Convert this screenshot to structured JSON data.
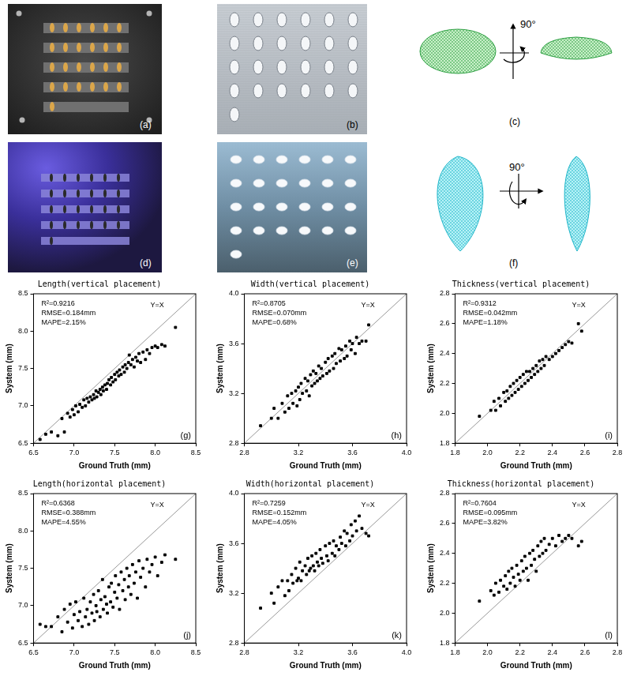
{
  "panels": [
    {
      "label": "(a)"
    },
    {
      "label": "(b)"
    },
    {
      "label": "(c)",
      "rotation": "90°"
    },
    {
      "label": "(d)"
    },
    {
      "label": "(e)"
    },
    {
      "label": "(f)",
      "rotation": "90°"
    }
  ],
  "chart_data": [
    {
      "type": "scatter",
      "title": "Length(vertical placement)",
      "x_label": "Ground Truth (mm)",
      "y_label": "System (mm)",
      "annotations": [
        "R²=0.9216",
        "RMSE=0.184mm",
        "MAPE=2.15%"
      ],
      "panel_label": "(g)",
      "reference_line": {
        "label": "Y=X",
        "color": "#999999",
        "x": [
          6.5,
          8.5
        ],
        "values": [
          6.5,
          8.5
        ]
      },
      "color": "#000000",
      "marker": "square",
      "grid": false,
      "xlim": [
        6.5,
        8.5
      ],
      "ylim": [
        6.5,
        8.5
      ],
      "xticks": [
        6.5,
        {
          "value": 7,
          "label": "7.0"
        },
        7.5,
        {
          "value": 8,
          "label": "8.0"
        },
        8.5
      ],
      "yticks": [
        6.5,
        {
          "value": 7,
          "label": "7.0"
        },
        7.5,
        {
          "value": 8,
          "label": "8.0"
        },
        8.5
      ],
      "x": [
        6.58,
        6.65,
        6.72,
        6.8,
        6.85,
        6.88,
        6.92,
        6.95,
        6.98,
        7.0,
        7.02,
        7.05,
        7.07,
        7.1,
        7.12,
        7.14,
        7.16,
        7.18,
        7.2,
        7.22,
        7.24,
        7.25,
        7.27,
        7.28,
        7.3,
        7.32,
        7.33,
        7.35,
        7.36,
        7.38,
        7.4,
        7.41,
        7.43,
        7.45,
        7.46,
        7.48,
        7.5,
        7.51,
        7.53,
        7.55,
        7.56,
        7.58,
        7.6,
        7.62,
        7.63,
        7.65,
        7.67,
        7.68,
        7.7,
        7.72,
        7.74,
        7.76,
        7.78,
        7.8,
        7.82,
        7.85,
        7.88,
        7.9,
        7.93,
        7.96,
        8.0,
        8.03,
        8.08,
        8.12,
        8.25
      ],
      "values": [
        6.55,
        6.62,
        6.65,
        6.6,
        6.83,
        6.65,
        6.9,
        6.85,
        6.95,
        6.88,
        7.0,
        6.92,
        7.02,
        6.98,
        7.08,
        7.0,
        7.1,
        7.05,
        7.12,
        7.08,
        7.15,
        7.1,
        7.2,
        7.12,
        7.18,
        7.22,
        7.15,
        7.25,
        7.2,
        7.28,
        7.22,
        7.3,
        7.35,
        7.28,
        7.38,
        7.32,
        7.42,
        7.35,
        7.45,
        7.4,
        7.48,
        7.42,
        7.52,
        7.45,
        7.55,
        7.5,
        7.58,
        7.68,
        7.55,
        7.62,
        7.52,
        7.65,
        7.6,
        7.7,
        7.58,
        7.72,
        7.62,
        7.75,
        7.7,
        7.78,
        7.8,
        7.78,
        7.82,
        7.8,
        8.05
      ]
    },
    {
      "type": "scatter",
      "title": "Width(vertical placement)",
      "x_label": "Ground Truth (mm)",
      "y_label": "System (mm)",
      "annotations": [
        "R²=0.8705",
        "RMSE=0.070mm",
        "MAPE=0.68%"
      ],
      "panel_label": "(h)",
      "reference_line": {
        "label": "Y=X",
        "color": "#999999",
        "x": [
          2.8,
          4.0
        ],
        "values": [
          2.8,
          4.0
        ]
      },
      "color": "#000000",
      "marker": "square",
      "grid": false,
      "xlim": [
        2.8,
        4.0
      ],
      "ylim": [
        2.8,
        4.0
      ],
      "xticks": [
        2.8,
        3.2,
        3.6,
        {
          "value": 4,
          "label": "4.0"
        }
      ],
      "yticks": [
        2.8,
        3.2,
        3.6,
        {
          "value": 4,
          "label": "4.0"
        }
      ],
      "x": [
        2.92,
        3.0,
        3.02,
        3.05,
        3.08,
        3.1,
        3.12,
        3.13,
        3.15,
        3.16,
        3.18,
        3.19,
        3.2,
        3.21,
        3.22,
        3.23,
        3.25,
        3.26,
        3.27,
        3.28,
        3.29,
        3.3,
        3.31,
        3.32,
        3.33,
        3.34,
        3.35,
        3.36,
        3.37,
        3.38,
        3.4,
        3.41,
        3.42,
        3.43,
        3.45,
        3.46,
        3.47,
        3.48,
        3.5,
        3.51,
        3.52,
        3.54,
        3.55,
        3.56,
        3.58,
        3.59,
        3.6,
        3.62,
        3.63,
        3.65,
        3.67,
        3.7,
        3.72
      ],
      "values": [
        2.94,
        3.0,
        3.08,
        3.0,
        3.12,
        3.05,
        3.18,
        3.08,
        3.2,
        3.12,
        3.22,
        3.1,
        3.25,
        3.15,
        3.28,
        3.2,
        3.32,
        3.22,
        3.3,
        3.18,
        3.35,
        3.26,
        3.38,
        3.28,
        3.36,
        3.3,
        3.42,
        3.32,
        3.4,
        3.34,
        3.45,
        3.36,
        3.48,
        3.38,
        3.5,
        3.4,
        3.52,
        3.44,
        3.56,
        3.46,
        3.55,
        3.48,
        3.58,
        3.5,
        3.62,
        3.55,
        3.6,
        3.52,
        3.65,
        3.6,
        3.62,
        3.62,
        3.75
      ]
    },
    {
      "type": "scatter",
      "title": "Thickness(vertical placement)",
      "x_label": "Ground Truth (mm)",
      "y_label": "System (mm)",
      "annotations": [
        "R²=0.9312",
        "RMSE=0.042mm",
        "MAPE=1.18%"
      ],
      "panel_label": "(i)",
      "reference_line": {
        "label": "Y=X",
        "color": "#999999",
        "x": [
          1.8,
          2.8
        ],
        "values": [
          1.8,
          2.8
        ]
      },
      "color": "#000000",
      "marker": "square",
      "grid": false,
      "xlim": [
        1.8,
        2.8
      ],
      "ylim": [
        1.8,
        2.8
      ],
      "xticks": [
        1.8,
        {
          "value": 2,
          "label": "2.0"
        },
        2.2,
        2.4,
        2.6,
        2.8
      ],
      "yticks": [
        1.8,
        {
          "value": 2,
          "label": "2.0"
        },
        2.2,
        2.4,
        2.6,
        2.8
      ],
      "x": [
        1.95,
        2.02,
        2.04,
        2.05,
        2.07,
        2.08,
        2.1,
        2.11,
        2.12,
        2.13,
        2.14,
        2.15,
        2.16,
        2.17,
        2.18,
        2.19,
        2.2,
        2.21,
        2.22,
        2.23,
        2.24,
        2.25,
        2.26,
        2.27,
        2.28,
        2.29,
        2.3,
        2.31,
        2.32,
        2.33,
        2.34,
        2.35,
        2.36,
        2.38,
        2.4,
        2.42,
        2.44,
        2.46,
        2.48,
        2.5,
        2.52,
        2.56,
        2.58
      ],
      "values": [
        1.98,
        2.02,
        2.08,
        2.02,
        2.1,
        2.05,
        2.14,
        2.08,
        2.15,
        2.1,
        2.18,
        2.12,
        2.2,
        2.14,
        2.22,
        2.16,
        2.24,
        2.18,
        2.26,
        2.2,
        2.28,
        2.22,
        2.28,
        2.24,
        2.3,
        2.26,
        2.32,
        2.28,
        2.35,
        2.3,
        2.36,
        2.32,
        2.38,
        2.36,
        2.38,
        2.4,
        2.42,
        2.44,
        2.46,
        2.48,
        2.47,
        2.6,
        2.55
      ]
    },
    {
      "type": "scatter",
      "title": "Length(horizontal placement)",
      "x_label": "Ground Truth (mm)",
      "y_label": "System (mm)",
      "annotations": [
        "R²=0.6368",
        "RMSE=0.388mm",
        "MAPE=4.55%"
      ],
      "panel_label": "(j)",
      "reference_line": {
        "label": "Y=X",
        "color": "#999999",
        "x": [
          6.5,
          8.5
        ],
        "values": [
          6.5,
          8.5
        ]
      },
      "color": "#000000",
      "marker": "square",
      "grid": false,
      "xlim": [
        6.5,
        8.5
      ],
      "ylim": [
        6.5,
        8.5
      ],
      "xticks": [
        6.5,
        {
          "value": 7,
          "label": "7.0"
        },
        7.5,
        {
          "value": 8,
          "label": "8.0"
        },
        8.5
      ],
      "yticks": [
        6.5,
        {
          "value": 7,
          "label": "7.0"
        },
        7.5,
        {
          "value": 8,
          "label": "8.0"
        },
        8.5
      ],
      "x": [
        6.58,
        6.65,
        6.72,
        6.8,
        6.85,
        6.88,
        6.92,
        6.95,
        6.98,
        7.0,
        7.02,
        7.05,
        7.07,
        7.1,
        7.12,
        7.14,
        7.16,
        7.18,
        7.2,
        7.22,
        7.24,
        7.25,
        7.27,
        7.28,
        7.3,
        7.32,
        7.33,
        7.35,
        7.36,
        7.38,
        7.4,
        7.41,
        7.43,
        7.45,
        7.46,
        7.48,
        7.5,
        7.51,
        7.53,
        7.55,
        7.56,
        7.58,
        7.6,
        7.62,
        7.63,
        7.65,
        7.67,
        7.68,
        7.7,
        7.72,
        7.74,
        7.76,
        7.78,
        7.8,
        7.82,
        7.85,
        7.88,
        7.9,
        7.93,
        7.96,
        8.0,
        8.03,
        8.08,
        8.12,
        8.25
      ],
      "values": [
        6.75,
        6.72,
        6.72,
        6.85,
        6.65,
        6.95,
        6.78,
        7.02,
        6.7,
        6.88,
        7.05,
        6.8,
        6.92,
        6.72,
        7.1,
        6.85,
        6.95,
        6.75,
        7.05,
        6.9,
        7.15,
        6.8,
        7.0,
        6.92,
        7.2,
        6.85,
        7.08,
        7.35,
        6.95,
        7.12,
        7.02,
        6.9,
        7.25,
        7.05,
        7.3,
        6.98,
        7.18,
        7.4,
        7.1,
        7.28,
        6.95,
        7.45,
        7.2,
        7.35,
        7.08,
        7.5,
        7.25,
        7.4,
        7.15,
        7.55,
        7.3,
        7.45,
        7.1,
        7.6,
        7.38,
        7.5,
        7.25,
        7.62,
        7.45,
        7.55,
        7.65,
        7.4,
        7.58,
        7.68,
        7.62
      ]
    },
    {
      "type": "scatter",
      "title": "Width(horizontal placement)",
      "x_label": "Ground Truth (mm)",
      "y_label": "System (mm)",
      "annotations": [
        "R²=0.7259",
        "RMSE=0.152mm",
        "MAPE=4.05%"
      ],
      "panel_label": "(k)",
      "reference_line": {
        "label": "Y=X",
        "color": "#999999",
        "x": [
          2.8,
          4.0
        ],
        "values": [
          2.8,
          4.0
        ]
      },
      "color": "#000000",
      "marker": "square",
      "grid": false,
      "xlim": [
        2.8,
        4.0
      ],
      "ylim": [
        2.8,
        4.0
      ],
      "xticks": [
        2.8,
        3.2,
        3.6,
        {
          "value": 4,
          "label": "4.0"
        }
      ],
      "yticks": [
        2.8,
        3.2,
        3.6,
        {
          "value": 4,
          "label": "4.0"
        }
      ],
      "x": [
        2.92,
        3.0,
        3.02,
        3.05,
        3.08,
        3.1,
        3.12,
        3.13,
        3.15,
        3.16,
        3.18,
        3.19,
        3.2,
        3.21,
        3.22,
        3.23,
        3.25,
        3.26,
        3.27,
        3.28,
        3.29,
        3.3,
        3.31,
        3.32,
        3.33,
        3.34,
        3.35,
        3.36,
        3.37,
        3.38,
        3.4,
        3.41,
        3.42,
        3.43,
        3.45,
        3.46,
        3.47,
        3.48,
        3.5,
        3.51,
        3.52,
        3.54,
        3.55,
        3.56,
        3.58,
        3.59,
        3.6,
        3.62,
        3.63,
        3.65,
        3.67,
        3.7,
        3.72
      ],
      "values": [
        3.08,
        3.2,
        3.12,
        3.25,
        3.3,
        3.18,
        3.3,
        3.22,
        3.35,
        3.28,
        3.4,
        3.3,
        3.32,
        3.45,
        3.3,
        3.38,
        3.42,
        3.35,
        3.48,
        3.38,
        3.4,
        3.5,
        3.42,
        3.38,
        3.52,
        3.45,
        3.42,
        3.55,
        3.48,
        3.44,
        3.58,
        3.5,
        3.46,
        3.6,
        3.52,
        3.62,
        3.5,
        3.58,
        3.55,
        3.65,
        3.6,
        3.7,
        3.58,
        3.68,
        3.62,
        3.75,
        3.66,
        3.78,
        3.7,
        3.82,
        3.72,
        3.68,
        3.66
      ]
    },
    {
      "type": "scatter",
      "title": "Thickness(horizontal placement)",
      "x_label": "Ground Truth (mm)",
      "y_label": "System (mm)",
      "annotations": [
        "R²=0.7604",
        "RMSE=0.095mm",
        "MAPE=3.82%"
      ],
      "panel_label": "(l)",
      "reference_line": {
        "label": "Y=X",
        "color": "#999999",
        "x": [
          1.8,
          2.8
        ],
        "values": [
          1.8,
          2.8
        ]
      },
      "color": "#000000",
      "marker": "square",
      "grid": false,
      "xlim": [
        1.8,
        2.8
      ],
      "ylim": [
        1.8,
        2.8
      ],
      "xticks": [
        1.8,
        {
          "value": 2,
          "label": "2.0"
        },
        2.2,
        2.4,
        2.6,
        2.8
      ],
      "yticks": [
        1.8,
        {
          "value": 2,
          "label": "2.0"
        },
        2.2,
        2.4,
        2.6,
        2.8
      ],
      "x": [
        1.95,
        2.02,
        2.04,
        2.05,
        2.07,
        2.08,
        2.1,
        2.11,
        2.12,
        2.13,
        2.14,
        2.15,
        2.16,
        2.17,
        2.18,
        2.19,
        2.2,
        2.21,
        2.22,
        2.23,
        2.24,
        2.25,
        2.26,
        2.27,
        2.28,
        2.29,
        2.3,
        2.31,
        2.32,
        2.33,
        2.34,
        2.35,
        2.36,
        2.38,
        2.4,
        2.42,
        2.44,
        2.46,
        2.48,
        2.5,
        2.52,
        2.56,
        2.58
      ],
      "values": [
        2.08,
        2.15,
        2.12,
        2.2,
        2.14,
        2.22,
        2.18,
        2.25,
        2.16,
        2.28,
        2.2,
        2.3,
        2.24,
        2.18,
        2.32,
        2.26,
        2.22,
        2.35,
        2.28,
        2.38,
        2.3,
        2.22,
        2.4,
        2.32,
        2.42,
        2.36,
        2.28,
        2.45,
        2.38,
        2.48,
        2.4,
        2.5,
        2.42,
        2.46,
        2.5,
        2.45,
        2.52,
        2.48,
        2.5,
        2.52,
        2.5,
        2.45,
        2.48
      ]
    }
  ]
}
